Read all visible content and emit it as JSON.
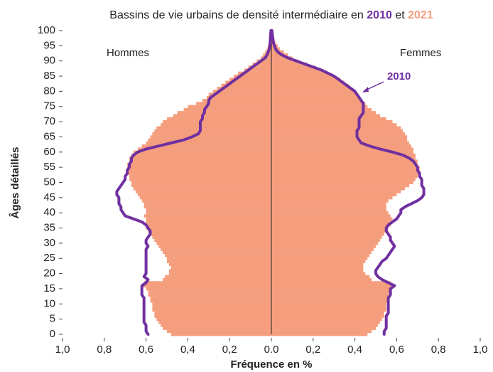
{
  "chart_data": {
    "type": "population_pyramid",
    "title": "Bassins de vie urbains de densité intermédiaire en",
    "title_joiner": "et",
    "left_label": "Hommes",
    "right_label": "Femmes",
    "xlabel": "Fréquence en %",
    "ylabel": "Âges détaillés",
    "annotation": "2010",
    "xlim": [
      -1,
      1
    ],
    "xticks": [
      {
        "value": -1,
        "label": "1,0"
      },
      {
        "value": -0.8,
        "label": "0,8"
      },
      {
        "value": -0.6,
        "label": "0,6"
      },
      {
        "value": -0.4,
        "label": "0,4"
      },
      {
        "value": -0.2,
        "label": "0,2"
      },
      {
        "value": 0,
        "label": "0.0"
      },
      {
        "value": 0.2,
        "label": "0,2"
      },
      {
        "value": 0.4,
        "label": "0,4"
      },
      {
        "value": 0.6,
        "label": "0,6"
      },
      {
        "value": 0.8,
        "label": "0,8"
      },
      {
        "value": 1,
        "label": "1,0"
      }
    ],
    "ylim": [
      0,
      100
    ],
    "yticks": [
      0,
      5,
      10,
      15,
      20,
      25,
      30,
      35,
      40,
      45,
      50,
      55,
      60,
      65,
      70,
      75,
      80,
      85,
      90,
      95,
      100
    ],
    "ages": [
      0,
      1,
      2,
      3,
      4,
      5,
      6,
      7,
      8,
      9,
      10,
      11,
      12,
      13,
      14,
      15,
      16,
      17,
      18,
      19,
      20,
      21,
      22,
      23,
      24,
      25,
      26,
      27,
      28,
      29,
      30,
      31,
      32,
      33,
      34,
      35,
      36,
      37,
      38,
      39,
      40,
      41,
      42,
      43,
      44,
      45,
      46,
      47,
      48,
      49,
      50,
      51,
      52,
      53,
      54,
      55,
      56,
      57,
      58,
      59,
      60,
      61,
      62,
      63,
      64,
      65,
      66,
      67,
      68,
      69,
      70,
      71,
      72,
      73,
      74,
      75,
      76,
      77,
      78,
      79,
      80,
      81,
      82,
      83,
      84,
      85,
      86,
      87,
      88,
      89,
      90,
      91,
      92,
      93,
      94,
      95,
      96,
      97,
      98,
      99,
      100
    ],
    "series": [
      {
        "name": "2021",
        "side": "left",
        "style": "bars",
        "color": "#f59e7e",
        "values": [
          0.48,
          0.5,
          0.52,
          0.53,
          0.54,
          0.55,
          0.56,
          0.56,
          0.57,
          0.57,
          0.57,
          0.58,
          0.58,
          0.59,
          0.59,
          0.6,
          0.62,
          0.61,
          0.52,
          0.51,
          0.49,
          0.49,
          0.48,
          0.49,
          0.5,
          0.5,
          0.51,
          0.52,
          0.53,
          0.54,
          0.55,
          0.56,
          0.57,
          0.58,
          0.59,
          0.6,
          0.6,
          0.6,
          0.6,
          0.61,
          0.6,
          0.6,
          0.61,
          0.61,
          0.62,
          0.63,
          0.64,
          0.65,
          0.66,
          0.67,
          0.67,
          0.68,
          0.68,
          0.69,
          0.69,
          0.69,
          0.69,
          0.68,
          0.68,
          0.67,
          0.66,
          0.64,
          0.62,
          0.6,
          0.59,
          0.58,
          0.57,
          0.56,
          0.55,
          0.53,
          0.52,
          0.5,
          0.47,
          0.45,
          0.42,
          0.4,
          0.36,
          0.33,
          0.31,
          0.3,
          0.28,
          0.26,
          0.24,
          0.22,
          0.2,
          0.18,
          0.16,
          0.13,
          0.11,
          0.09,
          0.07,
          0.05,
          0.04,
          0.03,
          0.02,
          0.015,
          0.01,
          0.008,
          0.005,
          0.003,
          0.002
        ]
      },
      {
        "name": "2021",
        "side": "right",
        "style": "bars",
        "color": "#f59e7e",
        "values": [
          0.46,
          0.48,
          0.5,
          0.51,
          0.52,
          0.53,
          0.54,
          0.54,
          0.55,
          0.55,
          0.55,
          0.56,
          0.56,
          0.56,
          0.57,
          0.57,
          0.58,
          0.57,
          0.48,
          0.47,
          0.45,
          0.44,
          0.44,
          0.44,
          0.45,
          0.46,
          0.47,
          0.48,
          0.49,
          0.5,
          0.51,
          0.52,
          0.53,
          0.54,
          0.55,
          0.56,
          0.57,
          0.57,
          0.58,
          0.57,
          0.56,
          0.55,
          0.55,
          0.55,
          0.56,
          0.58,
          0.6,
          0.62,
          0.64,
          0.66,
          0.68,
          0.69,
          0.7,
          0.71,
          0.71,
          0.71,
          0.7,
          0.7,
          0.69,
          0.69,
          0.68,
          0.68,
          0.67,
          0.66,
          0.65,
          0.65,
          0.64,
          0.63,
          0.62,
          0.6,
          0.58,
          0.55,
          0.52,
          0.5,
          0.48,
          0.46,
          0.45,
          0.43,
          0.42,
          0.41,
          0.4,
          0.38,
          0.37,
          0.35,
          0.33,
          0.3,
          0.27,
          0.24,
          0.21,
          0.17,
          0.13,
          0.1,
          0.08,
          0.06,
          0.04,
          0.03,
          0.02,
          0.015,
          0.01,
          0.006,
          0.004
        ]
      },
      {
        "name": "2010",
        "side": "left",
        "style": "line",
        "color": "#7030a0",
        "values": [
          0.59,
          0.6,
          0.6,
          0.6,
          0.61,
          0.61,
          0.61,
          0.61,
          0.61,
          0.61,
          0.61,
          0.61,
          0.61,
          0.62,
          0.62,
          0.62,
          0.62,
          0.6,
          0.59,
          0.61,
          0.6,
          0.6,
          0.6,
          0.6,
          0.6,
          0.6,
          0.6,
          0.6,
          0.6,
          0.59,
          0.6,
          0.6,
          0.59,
          0.58,
          0.58,
          0.59,
          0.6,
          0.62,
          0.66,
          0.7,
          0.71,
          0.72,
          0.72,
          0.73,
          0.73,
          0.73,
          0.74,
          0.74,
          0.73,
          0.72,
          0.71,
          0.7,
          0.7,
          0.69,
          0.69,
          0.68,
          0.68,
          0.67,
          0.67,
          0.66,
          0.64,
          0.6,
          0.54,
          0.48,
          0.42,
          0.38,
          0.35,
          0.34,
          0.34,
          0.34,
          0.34,
          0.33,
          0.33,
          0.32,
          0.32,
          0.31,
          0.3,
          0.3,
          0.29,
          0.27,
          0.25,
          0.23,
          0.21,
          0.19,
          0.17,
          0.15,
          0.13,
          0.11,
          0.09,
          0.07,
          0.05,
          0.03,
          0.02,
          0.015,
          0.01,
          0.008,
          0.006,
          0.005,
          0.004,
          0.003,
          0.002
        ]
      },
      {
        "name": "2010",
        "side": "right",
        "style": "line",
        "color": "#7030a0",
        "values": [
          0.54,
          0.54,
          0.55,
          0.55,
          0.55,
          0.55,
          0.55,
          0.56,
          0.56,
          0.56,
          0.56,
          0.56,
          0.56,
          0.57,
          0.57,
          0.57,
          0.59,
          0.56,
          0.53,
          0.51,
          0.5,
          0.5,
          0.51,
          0.52,
          0.53,
          0.55,
          0.56,
          0.57,
          0.58,
          0.59,
          0.58,
          0.57,
          0.57,
          0.56,
          0.55,
          0.55,
          0.56,
          0.58,
          0.6,
          0.61,
          0.62,
          0.62,
          0.64,
          0.67,
          0.7,
          0.72,
          0.73,
          0.73,
          0.73,
          0.72,
          0.72,
          0.72,
          0.71,
          0.71,
          0.7,
          0.7,
          0.69,
          0.68,
          0.66,
          0.63,
          0.58,
          0.52,
          0.47,
          0.43,
          0.42,
          0.41,
          0.41,
          0.41,
          0.42,
          0.42,
          0.42,
          0.42,
          0.43,
          0.44,
          0.44,
          0.44,
          0.44,
          0.43,
          0.42,
          0.41,
          0.4,
          0.38,
          0.36,
          0.34,
          0.32,
          0.3,
          0.27,
          0.24,
          0.2,
          0.16,
          0.12,
          0.08,
          0.05,
          0.03,
          0.02,
          0.015,
          0.01,
          0.008,
          0.006,
          0.004,
          0.003
        ]
      }
    ]
  }
}
